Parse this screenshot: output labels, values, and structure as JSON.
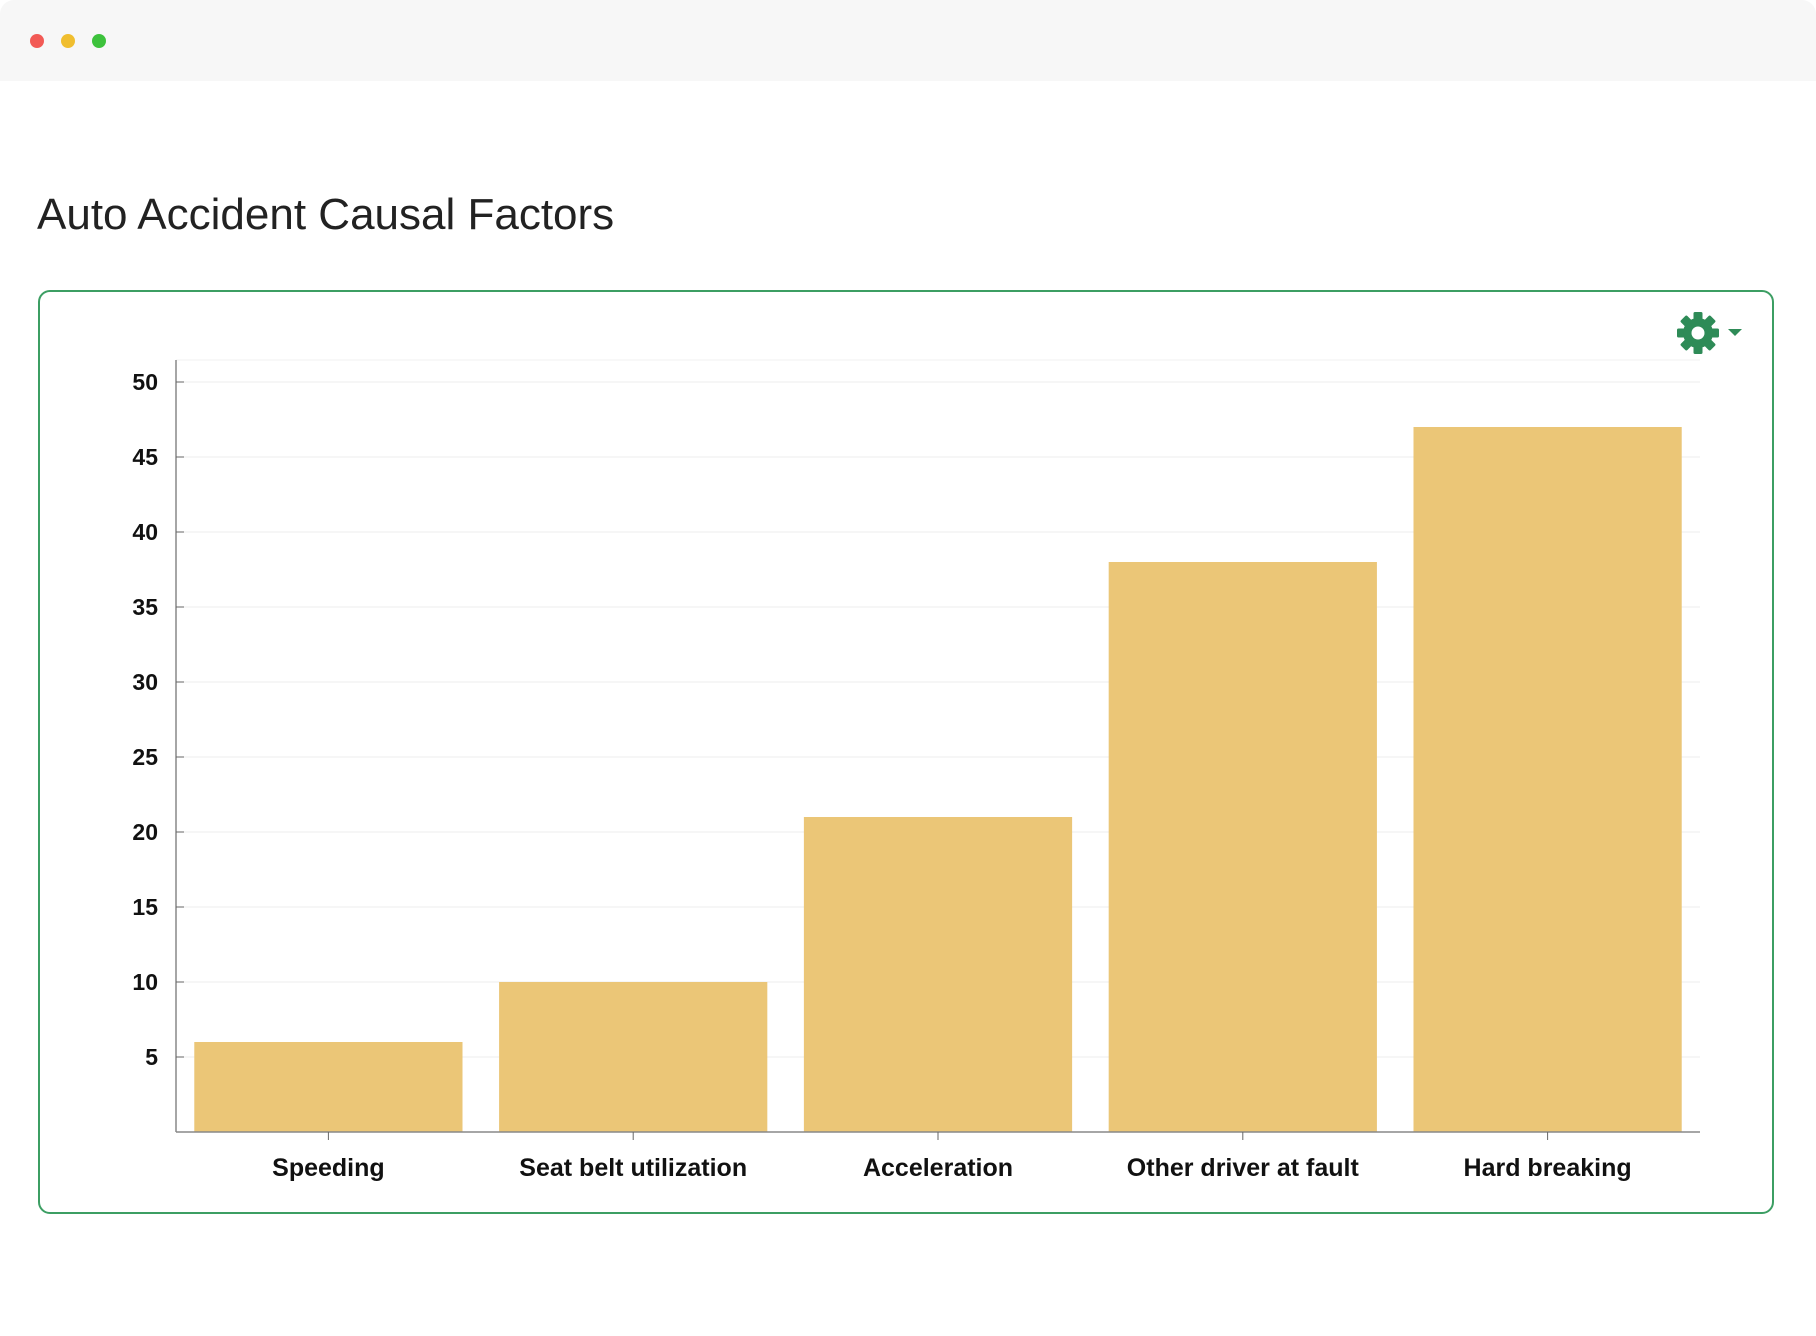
{
  "page": {
    "title": "Auto Accident Causal Factors"
  },
  "toolbar": {
    "settings_icon": "gear-icon",
    "dropdown_icon": "caret-down-icon"
  },
  "colors": {
    "accent": "#3c9e63",
    "bar": "#ebc677"
  },
  "chart_data": {
    "type": "bar",
    "title": "",
    "xlabel": "",
    "ylabel": "",
    "categories": [
      "Speeding",
      "Seat belt utilization",
      "Acceleration",
      "Other driver at fault",
      "Hard breaking"
    ],
    "values": [
      6,
      10,
      21,
      38,
      47
    ],
    "ylim": [
      0,
      50
    ],
    "yticks": [
      5,
      10,
      15,
      20,
      25,
      30,
      35,
      40,
      45,
      50
    ],
    "grid": true,
    "legend": "none"
  }
}
